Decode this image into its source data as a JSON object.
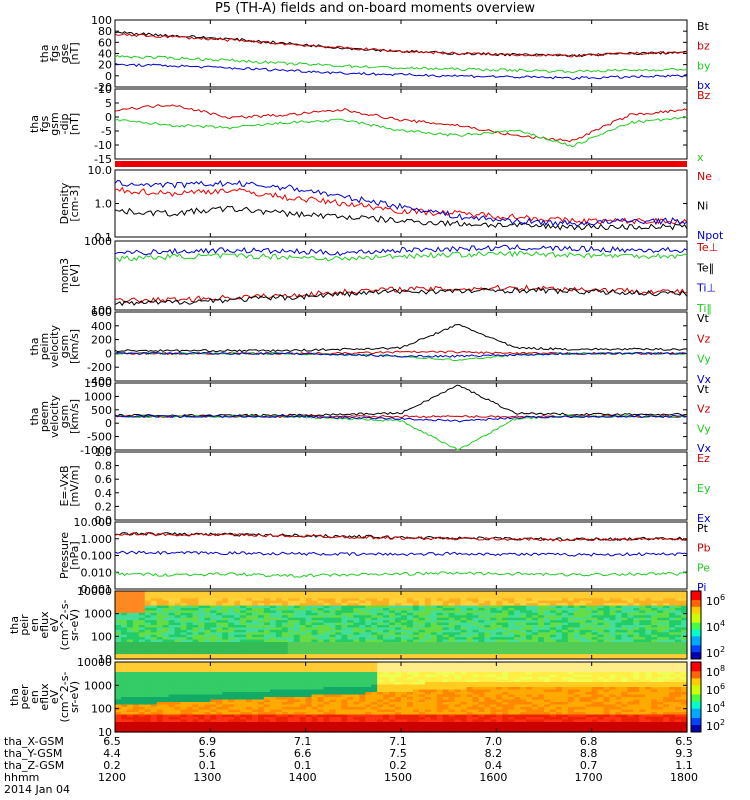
{
  "title": "P5 (TH-A) fields and on-board moments overview",
  "panels": [
    {
      "id": "fgs_gse",
      "ylabel": [
        "tha",
        "fgs",
        "gse",
        "[nT]"
      ],
      "yticks": [
        "100",
        "80",
        "60",
        "40",
        "20",
        "0",
        "-20"
      ],
      "legend": [
        {
          "text": "Bt",
          "color": "#000000"
        },
        {
          "text": "bz",
          "color": "#cc0000"
        },
        {
          "text": "by",
          "color": "#22cc22"
        },
        {
          "text": "bx",
          "color": "#0000cc"
        }
      ]
    },
    {
      "id": "fgs_gsm",
      "ylabel": [
        "tha",
        "fgs",
        "gsm",
        "-dip",
        "[nT]"
      ],
      "yticks": [
        "10",
        "5",
        "0",
        "-5",
        "-10",
        "-15"
      ],
      "legend": [
        {
          "text": "Bz",
          "color": "#cc0000"
        },
        {
          "text": "x",
          "color": "#22cc22"
        }
      ]
    },
    {
      "id": "density",
      "ylabel": [
        "Density",
        "[cm-3]"
      ],
      "yticks": [
        "10.0",
        "1.0",
        "0.1"
      ],
      "legend": [
        {
          "text": "Ne",
          "color": "#cc0000"
        },
        {
          "text": "Ni",
          "color": "#000000"
        },
        {
          "text": "Npot",
          "color": "#0000cc"
        }
      ]
    },
    {
      "id": "temp",
      "ylabel": [
        "mom3",
        "[eV]"
      ],
      "yticks": [
        "1000",
        "100"
      ],
      "legend": [
        {
          "text": "Te⊥",
          "color": "#cc0000"
        },
        {
          "text": "Te‖",
          "color": "#000000"
        },
        {
          "text": "Ti⊥",
          "color": "#0000cc"
        },
        {
          "text": "Ti‖",
          "color": "#22cc22"
        }
      ]
    },
    {
      "id": "peim_v",
      "ylabel": [
        "tha",
        "peim",
        "velocity",
        "gsm",
        "[km/s]"
      ],
      "yticks": [
        "600",
        "400",
        "200",
        "0",
        "-200",
        "-400"
      ],
      "legend": [
        {
          "text": "Vt",
          "color": "#000000"
        },
        {
          "text": "Vz",
          "color": "#cc0000"
        },
        {
          "text": "Vy",
          "color": "#22cc22"
        },
        {
          "text": "Vx",
          "color": "#0000cc"
        }
      ]
    },
    {
      "id": "peem_v",
      "ylabel": [
        "tha",
        "peem",
        "velocity",
        "gsm",
        "[km/s]"
      ],
      "yticks": [
        "1500",
        "1000",
        "500",
        "0",
        "-500",
        "-1000"
      ],
      "legend": [
        {
          "text": "Vt",
          "color": "#000000"
        },
        {
          "text": "Vz",
          "color": "#cc0000"
        },
        {
          "text": "Vy",
          "color": "#22cc22"
        },
        {
          "text": "Vx",
          "color": "#0000cc"
        }
      ]
    },
    {
      "id": "efield",
      "ylabel": [
        "E=-VxB",
        "[mV/m]"
      ],
      "yticks": [
        "1.0",
        "0.8",
        "0.6",
        "0.4",
        "0.2",
        "0.0"
      ],
      "legend": [
        {
          "text": "Ez",
          "color": "#cc0000"
        },
        {
          "text": "Ey",
          "color": "#22cc22"
        },
        {
          "text": "Ex",
          "color": "#0000cc"
        }
      ]
    },
    {
      "id": "pressure",
      "ylabel": [
        "Pressure",
        "[nPa]"
      ],
      "yticks": [
        "10.000",
        "1.000",
        "0.100",
        "0.010",
        "0.001"
      ],
      "legend": [
        {
          "text": "Pt",
          "color": "#000000"
        },
        {
          "text": "Pb",
          "color": "#cc0000"
        },
        {
          "text": "Pe",
          "color": "#22cc22"
        },
        {
          "text": "Pi",
          "color": "#0000cc"
        }
      ]
    },
    {
      "id": "peir_spec",
      "ylabel": [
        "tha",
        "peir",
        "en",
        "eflux",
        "eV",
        "(cm^2-s-",
        "sr-eV)"
      ],
      "yticks": [
        "10000",
        "1000",
        "100",
        "10"
      ],
      "cbar": [
        "10^6",
        "10^4",
        "10^2"
      ]
    },
    {
      "id": "peer_spec",
      "ylabel": [
        "tha",
        "peer",
        "en",
        "eflux",
        "eV",
        "(cm^2-s-",
        "sr-eV)"
      ],
      "yticks": [
        "10000",
        "1000",
        "100",
        "10"
      ],
      "cbar": [
        "10^8",
        "10^6",
        "10^4",
        "10^2"
      ]
    }
  ],
  "footer": {
    "rows": [
      {
        "label": "tha_X-GSM",
        "values": [
          "6.5",
          "6.9",
          "7.1",
          "7.1",
          "7.0",
          "6.8",
          "6.5"
        ]
      },
      {
        "label": "tha_Y-GSM",
        "values": [
          "4.4",
          "5.6",
          "6.6",
          "7.5",
          "8.2",
          "8.8",
          "9.3"
        ]
      },
      {
        "label": "tha_Z-GSM",
        "values": [
          "0.2",
          "0.1",
          "0.1",
          "0.2",
          "0.4",
          "0.7",
          "1.1"
        ]
      },
      {
        "label": "hhmm",
        "values": [
          "1200",
          "1300",
          "1400",
          "1500",
          "1600",
          "1700",
          "1800"
        ]
      }
    ],
    "date": "2014 Jan 04"
  },
  "chart_data": {
    "type": "line",
    "x_time_ticks": [
      "1200",
      "1300",
      "1400",
      "1500",
      "1600",
      "1700",
      "1800"
    ],
    "panels": [
      {
        "name": "fgs_gse",
        "ylim": [
          -20,
          100
        ],
        "series": [
          {
            "name": "Bt",
            "values": [
              78,
              72,
              66,
              58,
              50,
              44,
              40,
              38,
              36,
              40,
              42
            ]
          },
          {
            "name": "bz",
            "values": [
              74,
              70,
              64,
              57,
              50,
              44,
              40,
              38,
              36,
              40,
              42
            ]
          },
          {
            "name": "by",
            "values": [
              35,
              32,
              28,
              22,
              18,
              14,
              12,
              10,
              8,
              10,
              12
            ]
          },
          {
            "name": "bx",
            "values": [
              20,
              18,
              14,
              10,
              5,
              2,
              0,
              -2,
              -4,
              -2,
              0
            ]
          }
        ]
      },
      {
        "name": "fgs_gsm_dip",
        "ylim": [
          -17,
          10
        ],
        "series": [
          {
            "name": "Bz",
            "values": [
              2,
              4,
              -1,
              0,
              2,
              -2,
              -4,
              -8,
              -10,
              0,
              2
            ]
          },
          {
            "name": "x",
            "values": [
              -2,
              -4,
              -5,
              -3,
              -2,
              -6,
              -8,
              -6,
              -12,
              -3,
              -1
            ]
          }
        ]
      },
      {
        "name": "density",
        "ylim": [
          0.1,
          10
        ],
        "log": true,
        "series": [
          {
            "name": "Ne",
            "values": [
              2.5,
              2,
              2.5,
              1.5,
              1,
              0.6,
              0.5,
              0.4,
              0.3,
              0.3,
              0.3
            ]
          },
          {
            "name": "Ni",
            "values": [
              0.6,
              0.5,
              0.7,
              0.5,
              0.4,
              0.3,
              0.25,
              0.22,
              0.2,
              0.2,
              0.2
            ]
          },
          {
            "name": "Npot",
            "values": [
              4,
              3.5,
              4,
              3,
              1.5,
              0.8,
              0.4,
              0.3,
              0.25,
              0.3,
              0.3
            ]
          }
        ]
      },
      {
        "name": "temp",
        "ylim": [
          50,
          10000
        ],
        "log": true,
        "series": [
          {
            "name": "Te⊥",
            "values": [
              100,
              110,
              130,
              150,
              200,
              250,
              250,
              280,
              250,
              220,
              200
            ]
          },
          {
            "name": "Te‖",
            "values": [
              80,
              90,
              110,
              130,
              170,
              210,
              210,
              230,
              210,
              190,
              170
            ]
          },
          {
            "name": "Ti⊥",
            "values": [
              4000,
              4500,
              5000,
              4500,
              4000,
              5000,
              5500,
              6000,
              5500,
              5000,
              5000
            ]
          },
          {
            "name": "Ti‖",
            "values": [
              2500,
              3000,
              3200,
              3000,
              2500,
              3200,
              3500,
              3800,
              3500,
              3200,
              3200
            ]
          }
        ]
      },
      {
        "name": "peim_velocity",
        "ylim": [
          -400,
          600
        ],
        "series": [
          {
            "name": "Vt",
            "values": [
              40,
              40,
              40,
              40,
              60,
              80,
              420,
              80,
              60,
              60,
              60
            ]
          },
          {
            "name": "Vz",
            "values": [
              0,
              0,
              0,
              0,
              0,
              20,
              20,
              0,
              0,
              0,
              0
            ]
          },
          {
            "name": "Vy",
            "values": [
              0,
              0,
              0,
              0,
              -20,
              -40,
              -100,
              -20,
              0,
              0,
              0
            ]
          },
          {
            "name": "Vx",
            "values": [
              0,
              0,
              0,
              0,
              -20,
              -40,
              -40,
              -20,
              0,
              0,
              0
            ]
          }
        ]
      },
      {
        "name": "peem_velocity",
        "ylim": [
          -1500,
          1500
        ],
        "series": [
          {
            "name": "Vt",
            "values": [
              50,
              50,
              50,
              60,
              100,
              150,
              1400,
              150,
              100,
              100,
              100
            ]
          },
          {
            "name": "Vz",
            "values": [
              0,
              0,
              0,
              0,
              0,
              0,
              0,
              0,
              0,
              0,
              0
            ]
          },
          {
            "name": "Vy",
            "values": [
              0,
              0,
              0,
              0,
              -100,
              -200,
              -1500,
              -100,
              0,
              0,
              0
            ]
          },
          {
            "name": "Vx",
            "values": [
              0,
              0,
              0,
              0,
              -50,
              -100,
              -200,
              -50,
              0,
              0,
              0
            ]
          }
        ]
      },
      {
        "name": "efield",
        "ylim": [
          0,
          1
        ],
        "series": []
      },
      {
        "name": "pressure",
        "ylim": [
          0.001,
          10
        ],
        "log": true,
        "series": [
          {
            "name": "Pt",
            "values": [
              2,
              1.9,
              1.8,
              1.6,
              1.4,
              1.2,
              1.1,
              1,
              0.9,
              1,
              1
            ]
          },
          {
            "name": "Pb",
            "values": [
              1.9,
              1.8,
              1.7,
              1.5,
              1.3,
              1.1,
              1,
              0.95,
              0.85,
              0.95,
              0.95
            ]
          },
          {
            "name": "Pe",
            "values": [
              0.008,
              0.007,
              0.008,
              0.006,
              0.007,
              0.008,
              0.009,
              0.008,
              0.007,
              0.008,
              0.008
            ]
          },
          {
            "name": "Pi",
            "values": [
              0.15,
              0.14,
              0.14,
              0.13,
              0.12,
              0.12,
              0.13,
              0.12,
              0.11,
              0.12,
              0.12
            ]
          }
        ]
      }
    ]
  }
}
